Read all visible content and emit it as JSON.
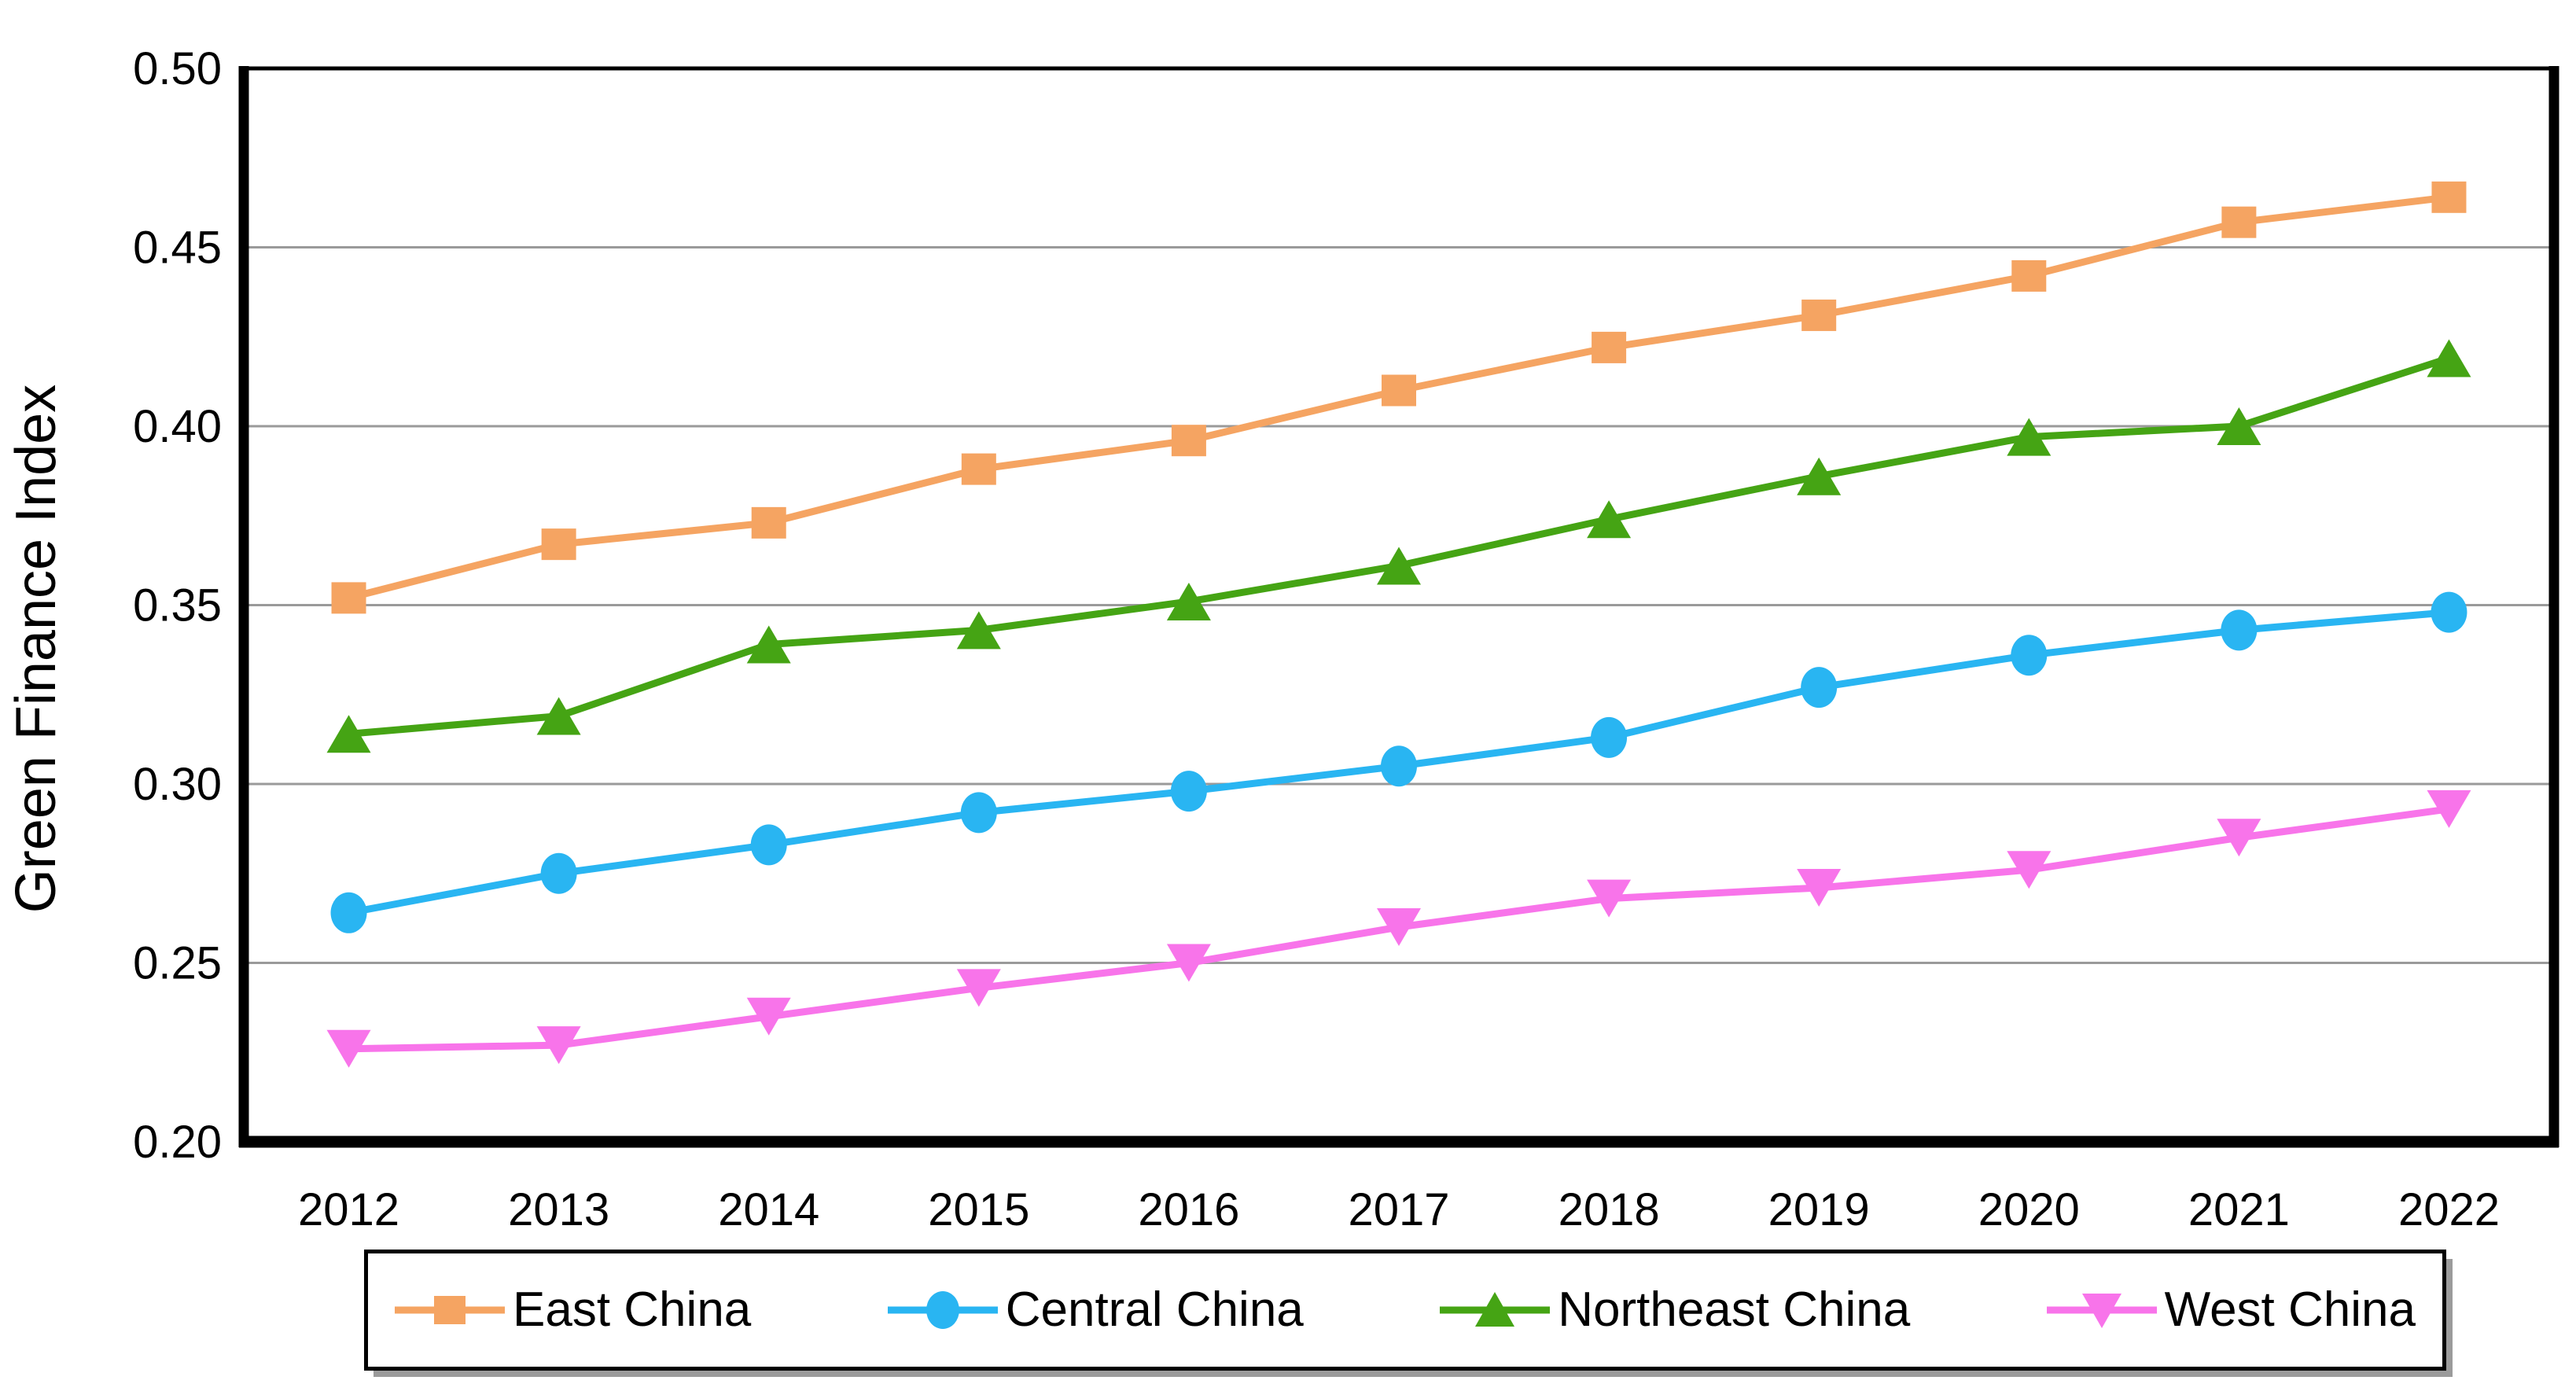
{
  "chart_data": {
    "type": "line",
    "title": "",
    "xlabel": "",
    "ylabel": "Green Finance Index",
    "x": [
      "2012",
      "2013",
      "2014",
      "2015",
      "2016",
      "2017",
      "2018",
      "2019",
      "2020",
      "2021",
      "2022"
    ],
    "ylim": [
      0.2,
      0.5
    ],
    "ytick_step": 0.05,
    "ytick_decimals": 2,
    "grid": "horizontal-gray-lines",
    "legend_position": "bottom-boxed",
    "axis_color": "#000000",
    "gridline_color": "#9a9a9a",
    "series": [
      {
        "name": "East China",
        "color": "#F5A462",
        "marker": "square",
        "values": [
          0.352,
          0.367,
          0.373,
          0.388,
          0.396,
          0.41,
          0.422,
          0.431,
          0.442,
          0.457,
          0.464
        ]
      },
      {
        "name": "Central China",
        "color": "#29B5F2",
        "marker": "circle",
        "values": [
          0.264,
          0.275,
          0.283,
          0.292,
          0.298,
          0.305,
          0.313,
          0.327,
          0.336,
          0.343,
          0.348
        ]
      },
      {
        "name": "Northeast China",
        "color": "#45A414",
        "marker": "triangle-up",
        "values": [
          0.314,
          0.319,
          0.339,
          0.343,
          0.351,
          0.361,
          0.374,
          0.386,
          0.397,
          0.4,
          0.419
        ]
      },
      {
        "name": "West China",
        "color": "#F874EA",
        "marker": "triangle-down",
        "values": [
          0.226,
          0.227,
          0.235,
          0.243,
          0.25,
          0.26,
          0.268,
          0.271,
          0.276,
          0.285,
          0.293
        ]
      }
    ]
  }
}
